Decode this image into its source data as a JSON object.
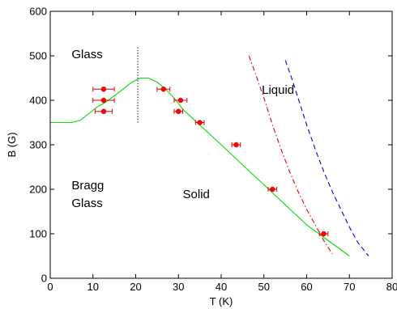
{
  "chart_data": {
    "type": "scatter",
    "xlabel": "T (K)",
    "ylabel": "B (G)",
    "xlim": [
      0,
      80
    ],
    "ylim": [
      0,
      600
    ],
    "x_ticks": [
      0,
      10,
      20,
      30,
      40,
      50,
      60,
      70,
      80
    ],
    "y_ticks": [
      0,
      100,
      200,
      300,
      400,
      500,
      600
    ],
    "grid": false,
    "annotations": [
      {
        "text": "Glass",
        "x": 5,
        "y": 495
      },
      {
        "text": "Liquid",
        "x": 49.5,
        "y": 415
      },
      {
        "text": "Bragg",
        "x": 5,
        "y": 200
      },
      {
        "text": "Glass",
        "x": 5,
        "y": 160
      },
      {
        "text": "Solid",
        "x": 31,
        "y": 180
      }
    ],
    "points": [
      {
        "x": 12.5,
        "y": 425,
        "xerr": 2.5
      },
      {
        "x": 12.5,
        "y": 400,
        "xerr": 2.5
      },
      {
        "x": 12.5,
        "y": 375,
        "xerr": 2.0
      },
      {
        "x": 26.5,
        "y": 425,
        "xerr": 1.5
      },
      {
        "x": 30.5,
        "y": 400,
        "xerr": 1.5
      },
      {
        "x": 30.0,
        "y": 375,
        "xerr": 1.0
      },
      {
        "x": 35.0,
        "y": 350,
        "xerr": 1.0
      },
      {
        "x": 43.5,
        "y": 300,
        "xerr": 1.0
      },
      {
        "x": 52.0,
        "y": 200,
        "xerr": 1.0
      },
      {
        "x": 64.0,
        "y": 100,
        "xerr": 1.0
      }
    ],
    "series": [
      {
        "style": "solid",
        "color": "#00dd00",
        "x": [
          0,
          5,
          7,
          9,
          11,
          13,
          15,
          17,
          19,
          21,
          23,
          25,
          27,
          29,
          31,
          40,
          50,
          60,
          70
        ],
        "y": [
          350,
          350,
          355,
          370,
          385,
          396,
          410,
          425,
          440,
          450,
          450,
          441,
          425,
          405,
          380,
          300,
          210,
          120,
          50
        ]
      },
      {
        "style": "dashdot",
        "color": "#dd0000",
        "x": [
          46.5,
          48,
          50,
          52,
          54,
          56,
          58,
          60,
          62,
          64,
          66
        ],
        "y": [
          500,
          460,
          405,
          345,
          290,
          240,
          195,
          155,
          120,
          85,
          55
        ]
      },
      {
        "style": "dashed",
        "color": "#0000dd",
        "x": [
          55,
          56.5,
          58,
          60,
          62,
          64,
          66,
          68,
          70,
          72,
          74.5
        ],
        "y": [
          490,
          450,
          405,
          345,
          290,
          240,
          195,
          155,
          115,
          80,
          50
        ]
      },
      {
        "style": "dotted",
        "color": "#000000",
        "x": [
          20.5,
          20.5
        ],
        "y": [
          350,
          520
        ]
      }
    ]
  }
}
